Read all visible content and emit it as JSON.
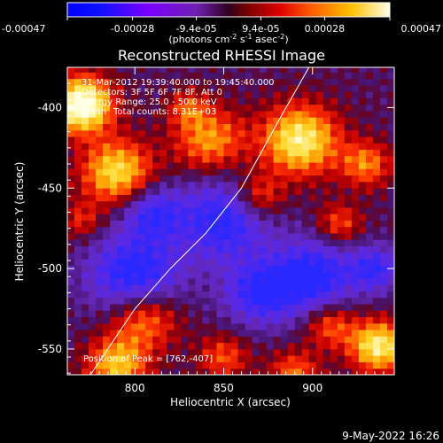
{
  "chart_data": {
    "type": "heatmap",
    "title": "Reconstructed RHESSI Image",
    "xlabel": "Heliocentric X (arcsec)",
    "ylabel": "Heliocentric Y (arcsec)",
    "xlim": [
      762,
      946
    ],
    "ylim": [
      -566,
      -375
    ],
    "xticks": [
      800,
      850,
      900
    ],
    "yticks": [
      -400,
      -450,
      -500,
      -550
    ],
    "colorbar": {
      "range": [
        -0.00047,
        0.00047
      ],
      "ticks": [
        -0.00047,
        -0.00028,
        -9.4e-05,
        9.4e-05,
        0.00028,
        0.00047
      ],
      "tick_labels": [
        "-0.00047",
        "-0.00028",
        "-9.4e-05",
        "9.4e-05",
        "0.00028",
        "0.00047"
      ],
      "unit_label": "(photons cm",
      "unit_label_sup1": "-2",
      "unit_label_mid1": " s",
      "unit_label_sup2": "-1",
      "unit_label_mid2": " asec",
      "unit_label_sup3": "-2",
      "unit_label_end": ")"
    },
    "annotations": {
      "line1": "31-Mar-2012 19:39:40.000 to 19:45:40.000",
      "line2": "Detectors: 3F 5F 6F 7F 8F, Att 0",
      "line3": "Energy Range: 25.0 - 50.0 keV",
      "line4_a": "Clean",
      "line4_b": "Total counts: 8.31E+03",
      "peak": "Position of Peak = [762,-407]"
    },
    "limb_curve": [
      [
        775,
        -566
      ],
      [
        800,
        -525
      ],
      [
        820,
        -500
      ],
      [
        840,
        -478
      ],
      [
        860,
        -450
      ],
      [
        880,
        -410
      ],
      [
        898,
        -375
      ]
    ],
    "peak_position": [
      762,
      -407
    ],
    "grid": false,
    "colormap": "rhessi-blue-purple-red-yellow-white"
  },
  "footer": {
    "date": "9-May-2022 16:26"
  },
  "colors": {
    "background": "#000000",
    "text": "#ffffff"
  }
}
